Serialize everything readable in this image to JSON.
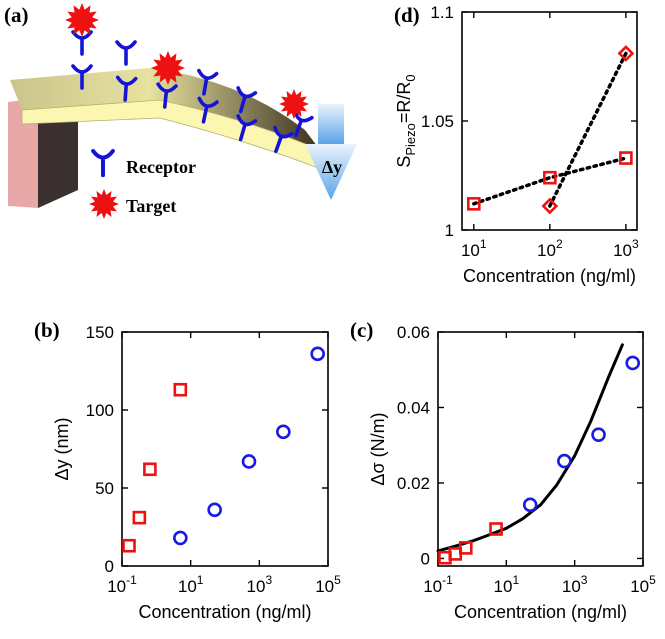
{
  "colors": {
    "red": "#ee1111",
    "blue": "#1a1ae6",
    "receptor_blue": "#1414d8",
    "cantilever_top": "#fbf6b0",
    "cantilever_side": "#b8b070",
    "support_pink": "#e8a8a8",
    "support_dark": "#3a3030",
    "arrow_blue": "#7ab8ee"
  },
  "schematic": {
    "panel_label": "(a)",
    "legend_receptor": "Receptor",
    "legend_target": "Target",
    "deflection_label": "Δy",
    "icons": [
      "receptor-icon",
      "target-star-icon",
      "down-arrow-icon",
      "cantilever-illustration"
    ]
  },
  "chart_data": [
    {
      "id": "b",
      "panel_label": "(b)",
      "type": "scatter",
      "xscale": "log",
      "xlim": [
        0.1,
        100000
      ],
      "ylim": [
        0,
        150
      ],
      "xlabel": "Concentration (ng/ml)",
      "ylabel": "Δy (nm)",
      "xticks": [
        {
          "v": 0.1,
          "b": "10",
          "e": "-1"
        },
        {
          "v": 10,
          "b": "10",
          "e": "1"
        },
        {
          "v": 1000,
          "b": "10",
          "e": "3"
        },
        {
          "v": 100000,
          "b": "10",
          "e": "5"
        }
      ],
      "yticks": [
        {
          "v": 0,
          "t": "0"
        },
        {
          "v": 50,
          "t": "50"
        },
        {
          "v": 100,
          "t": "100"
        },
        {
          "v": 150,
          "t": "150"
        }
      ],
      "series": [
        {
          "marker": "square",
          "color": "#ee1111",
          "x": [
            0.16,
            0.32,
            0.65,
            5
          ],
          "y": [
            13,
            31,
            62,
            113
          ]
        },
        {
          "marker": "circle",
          "color": "#1a1ae6",
          "x": [
            5,
            50,
            500,
            5000,
            50000
          ],
          "y": [
            18,
            36,
            67,
            86,
            136
          ]
        }
      ],
      "lines": []
    },
    {
      "id": "c",
      "panel_label": "(c)",
      "type": "scatter",
      "xscale": "log",
      "xlim": [
        0.1,
        100000
      ],
      "ylim": [
        -0.002,
        0.06
      ],
      "xlabel": "Concentration (ng/ml)",
      "ylabel": "Δσ (N/m)",
      "xticks": [
        {
          "v": 0.1,
          "b": "10",
          "e": "-1"
        },
        {
          "v": 10,
          "b": "10",
          "e": "1"
        },
        {
          "v": 1000,
          "b": "10",
          "e": "3"
        },
        {
          "v": 100000,
          "b": "10",
          "e": "5"
        }
      ],
      "yticks": [
        {
          "v": 0,
          "t": "0"
        },
        {
          "v": 0.02,
          "t": "0.02"
        },
        {
          "v": 0.04,
          "t": "0.04"
        },
        {
          "v": 0.06,
          "t": "0.06"
        }
      ],
      "series": [
        {
          "marker": "square",
          "color": "#ee1111",
          "x": [
            0.16,
            0.32,
            0.65,
            5
          ],
          "y": [
            0.0002,
            0.0012,
            0.0028,
            0.0078
          ]
        },
        {
          "marker": "circle",
          "color": "#1a1ae6",
          "x": [
            50,
            500,
            5000,
            50000
          ],
          "y": [
            0.0142,
            0.0258,
            0.0328,
            0.0518
          ]
        }
      ],
      "lines": [
        {
          "style": "solid",
          "color": "#000000",
          "x": [
            0.1,
            0.3,
            1,
            3,
            10,
            30,
            100,
            300,
            1000,
            3000,
            10000,
            25000
          ],
          "y": [
            0.002,
            0.0032,
            0.0046,
            0.0062,
            0.008,
            0.0105,
            0.0142,
            0.0195,
            0.0272,
            0.0365,
            0.0482,
            0.0566
          ]
        }
      ]
    },
    {
      "id": "d",
      "panel_label": "(d)",
      "type": "line",
      "xscale": "log",
      "xlim": [
        7,
        1400
      ],
      "ylim": [
        1.0,
        1.1
      ],
      "xlabel": "Concentration (ng/ml)",
      "ylabel": "S_Piezo = R/R_0",
      "xticks": [
        {
          "v": 10,
          "b": "10",
          "e": "1"
        },
        {
          "v": 100,
          "b": "10",
          "e": "2"
        },
        {
          "v": 1000,
          "b": "10",
          "e": "3"
        }
      ],
      "yticks": [
        {
          "v": 1.0,
          "t": "1"
        },
        {
          "v": 1.05,
          "t": "1.05"
        },
        {
          "v": 1.1,
          "t": "1.1"
        }
      ],
      "series": [
        {
          "marker": "square",
          "color": "#ee1111",
          "x": [
            10,
            100,
            1000
          ],
          "y": [
            1.012,
            1.024,
            1.033
          ]
        },
        {
          "marker": "diamond",
          "color": "#ee1111",
          "x": [
            100,
            1000
          ],
          "y": [
            1.011,
            1.081
          ]
        }
      ],
      "lines": [
        {
          "style": "dotted",
          "color": "#000000",
          "x": [
            10,
            100,
            1000
          ],
          "y": [
            1.012,
            1.024,
            1.033
          ]
        },
        {
          "style": "dotted",
          "color": "#000000",
          "x": [
            100,
            1000
          ],
          "y": [
            1.011,
            1.081
          ]
        }
      ]
    }
  ]
}
